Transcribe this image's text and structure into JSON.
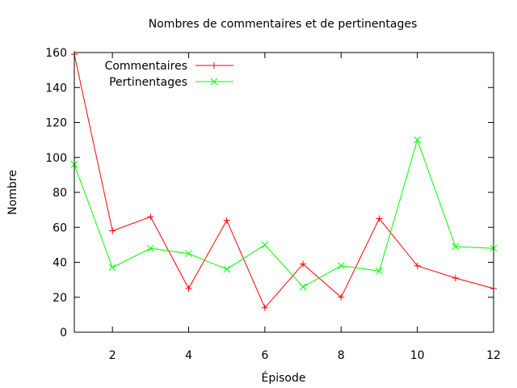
{
  "chart_data": {
    "type": "line",
    "title": "Nombres de commentaires et de pertinentages",
    "xlabel": "Épisode",
    "ylabel": "Nombre",
    "xlim": [
      1,
      12
    ],
    "ylim": [
      0,
      160
    ],
    "xticks": [
      2,
      4,
      6,
      8,
      10,
      12
    ],
    "yticks": [
      0,
      20,
      40,
      60,
      80,
      100,
      120,
      140,
      160
    ],
    "grid": false,
    "legend_position": "top-left",
    "x": [
      1,
      2,
      3,
      4,
      5,
      6,
      7,
      8,
      9,
      10,
      11,
      12
    ],
    "series": [
      {
        "name": "Commentaires",
        "color": "#ff0000",
        "marker": "plus",
        "values": [
          159,
          58,
          66,
          25,
          64,
          14,
          39,
          20,
          65,
          38,
          31,
          25
        ]
      },
      {
        "name": "Pertinentages",
        "color": "#00ff00",
        "marker": "cross",
        "values": [
          96,
          37,
          48,
          45,
          36,
          50,
          26,
          38,
          35,
          110,
          49,
          48
        ]
      }
    ]
  }
}
